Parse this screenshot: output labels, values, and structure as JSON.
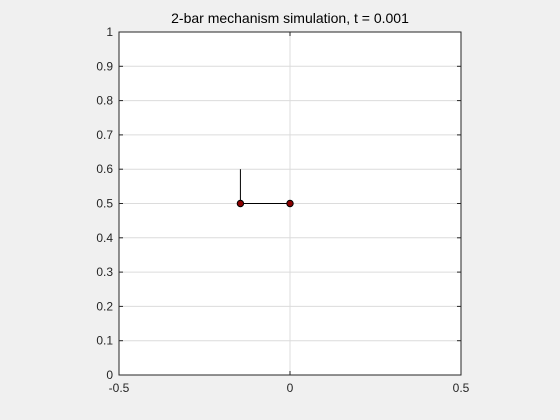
{
  "chart_data": {
    "type": "line",
    "title": "2-bar mechanism simulation, t = 0.001",
    "xlabel": "",
    "ylabel": "",
    "xlim": [
      -0.5,
      0.5
    ],
    "ylim": [
      0,
      1
    ],
    "xticks": [
      -0.5,
      0,
      0.5
    ],
    "xtick_labels": [
      "-0.5",
      "0",
      "0.5"
    ],
    "yticks": [
      0,
      0.1,
      0.2,
      0.3,
      0.4,
      0.5,
      0.6,
      0.7,
      0.8,
      0.9,
      1
    ],
    "ytick_labels": [
      "0",
      "0.1",
      "0.2",
      "0.3",
      "0.4",
      "0.5",
      "0.6",
      "0.7",
      "0.8",
      "0.9",
      "1"
    ],
    "grid": true,
    "series": [
      {
        "kind": "line",
        "color": "#000000",
        "x": [
          -0.145,
          -0.145
        ],
        "y": [
          0.6,
          0.5
        ]
      },
      {
        "kind": "line",
        "color": "#000000",
        "x": [
          -0.145,
          0.0
        ],
        "y": [
          0.5,
          0.5
        ]
      },
      {
        "kind": "scatter",
        "marker_fill": "#8b0000",
        "marker_edge": "#000000",
        "x": [
          -0.145,
          0.0
        ],
        "y": [
          0.5,
          0.5
        ]
      }
    ]
  },
  "colors": {
    "figure_background": "#f0f0f0",
    "axes_background": "#ffffff",
    "grid": "#dcdcdc",
    "axis": "#262626"
  }
}
